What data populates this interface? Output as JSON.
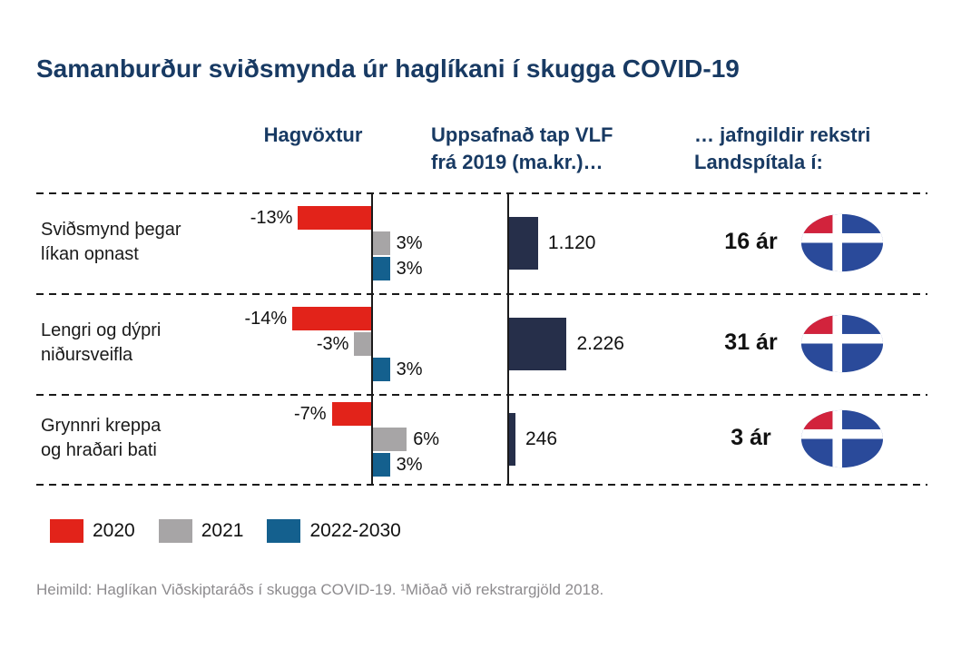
{
  "title": "Samanburður sviðsmynda úr haglíkani í skugga COVID-19",
  "headers": {
    "growth": "Hagvöxtur",
    "loss_line1": "Uppsafnað tap VLF",
    "loss_line2": "frá 2019 (ma.kr.)…",
    "equivalent_line1": "… jafngildir rekstri",
    "equivalent_line2": "Landspítala í:"
  },
  "chart_data": {
    "type": "bar",
    "orientation": "horizontal",
    "series": [
      "2020",
      "2021",
      "2022-2030"
    ],
    "series_colors": [
      "#e2231a",
      "#a7a5a6",
      "#14608e"
    ],
    "growth_unit": "%",
    "growth_range_pct": [
      -14,
      6
    ],
    "loss_unit": "ma.kr.",
    "legend_position": "bottom-left",
    "rows": [
      {
        "label_line1": "Sviðsmynd þegar",
        "label_line2": "líkan opnast",
        "growth_values": [
          -13,
          3,
          3
        ],
        "growth_labels": [
          "-13%",
          "3%",
          "3%"
        ],
        "loss_value": 1120,
        "loss_label": "1.120",
        "years": "16 ár"
      },
      {
        "label_line1": "Lengri og dýpri",
        "label_line2": "niðursveifla",
        "growth_values": [
          -14,
          -3,
          3
        ],
        "growth_labels": [
          "-14%",
          "-3%",
          "3%"
        ],
        "loss_value": 2226,
        "loss_label": "2.226",
        "years": "31 ár"
      },
      {
        "label_line1": "Grynnri kreppa",
        "label_line2": "og hraðari bati",
        "growth_values": [
          -7,
          6,
          3
        ],
        "growth_labels": [
          "-7%",
          "6%",
          "3%"
        ],
        "loss_value": 246,
        "loss_label": "246",
        "years": "3 ár"
      }
    ]
  },
  "legend": [
    {
      "label": "2020",
      "color": "#e2231a"
    },
    {
      "label": "2021",
      "color": "#a7a5a6"
    },
    {
      "label": "2022-2030",
      "color": "#14608e"
    }
  ],
  "colors": {
    "heading": "#183a63",
    "loss_bar": "#262f4a",
    "footer": "#8d8b8e",
    "dash": "#1a1a1a"
  },
  "logo_colors": {
    "red": "#d2233c",
    "blue": "#2a4a9a"
  },
  "footer": "Heimild: Haglíkan Viðskiptaráðs í skugga COVID-19. ¹Miðað við rekstrargjöld 2018."
}
